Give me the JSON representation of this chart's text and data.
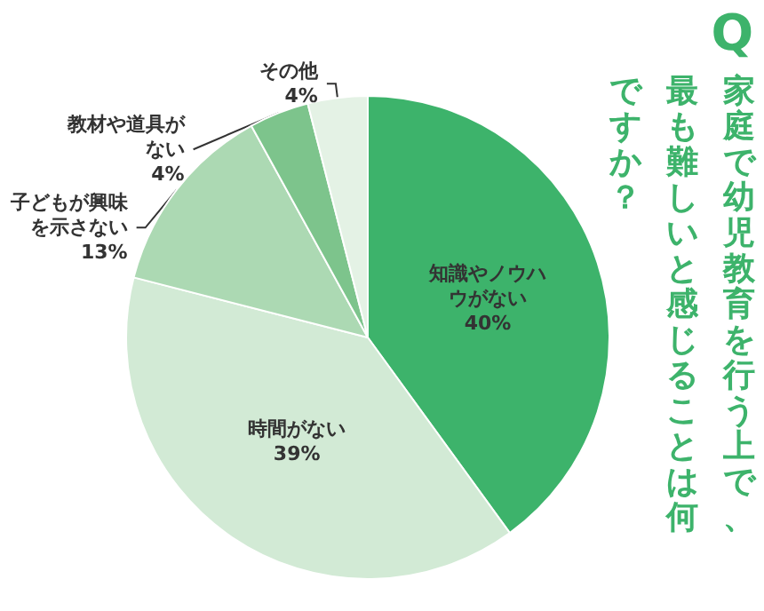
{
  "chart_data": {
    "type": "pie",
    "title": "家庭で幼児教育を行う上で、最も難しいと感じることは何ですか？",
    "annotations": [
      "Q"
    ],
    "categories": [
      "知識やノウハウがない",
      "時間がない",
      "子どもが興味を示さない",
      "教材や道具がない",
      "その他"
    ],
    "values": [
      40,
      39,
      13,
      4,
      4
    ],
    "value_labels": [
      "40%",
      "39%",
      "13%",
      "4%",
      "4%"
    ],
    "colors": [
      "#3db36b",
      "#d2ead5",
      "#acd9b3",
      "#7dc48c",
      "#e4f2e5"
    ]
  }
}
